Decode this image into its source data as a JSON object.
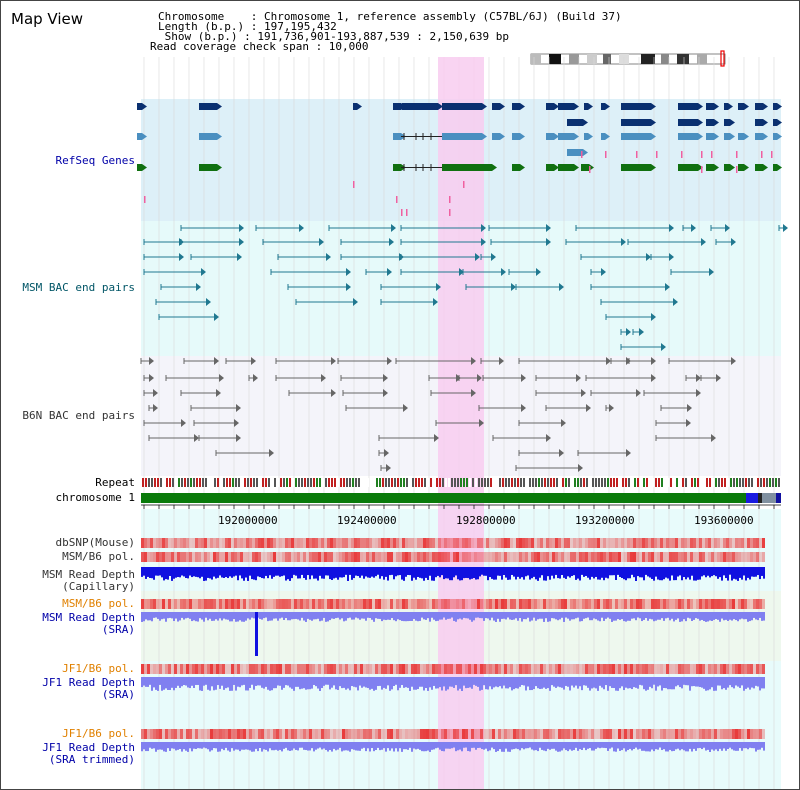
{
  "title": "Map View",
  "info": {
    "line1": "Chromosome    : Chromosome 1, reference assembly (C57BL/6J) (Build 37)",
    "line2": "Length (b.p.) : 197,195,432",
    "line3": " Show (b.p.) : 191,736,901-193,887,539 : 2,150,639 bp",
    "line4": "Read coverage check span : 10,000"
  },
  "tracks": {
    "refseq": "RefSeq Genes",
    "msm_bac": "MSM BAC end pairs",
    "b6n_bac": "B6N BAC end pairs",
    "repeat": "Repeat",
    "chromosome": "chromosome 1",
    "dbsnp": "dbSNP(Mouse)",
    "msm_b6_pol_1": "MSM/B6 pol.",
    "msm_read_depth_cap_1": "MSM Read Depth",
    "msm_read_depth_cap_2": "(Capillary)",
    "msm_b6_pol_2": "MSM/B6 pol.",
    "msm_read_depth_sra_1": "MSM Read Depth",
    "msm_read_depth_sra_2": "(SRA)",
    "jf1_b6_pol_1": "JF1/B6 pol.",
    "jf1_read_depth_sra_1": "JF1 Read Depth",
    "jf1_read_depth_sra_2": "(SRA)",
    "jf1_b6_pol_2": "JF1/B6 pol.",
    "jf1_read_depth_trim_1": "JF1 Read Depth",
    "jf1_read_depth_trim_2": "(SRA trimmed)"
  },
  "axis": {
    "ticks": [
      "192000000",
      "192400000",
      "192800000",
      "193200000",
      "193600000"
    ]
  },
  "colors": {
    "refseq_bg": "#ddf0f8",
    "msm_bg": "#e6fafa",
    "b6n_bg": "#f4f4fa",
    "highlight": "#f8ccf0",
    "gene_dark": "#0a3070",
    "gene_mid": "#4a8fc0",
    "gene_green": "#107010",
    "chromosome_bar": "#0a7a0a",
    "depth_blue": "#1010e0",
    "depth_light": "#8080f0",
    "pol_red": "#e83030"
  }
}
